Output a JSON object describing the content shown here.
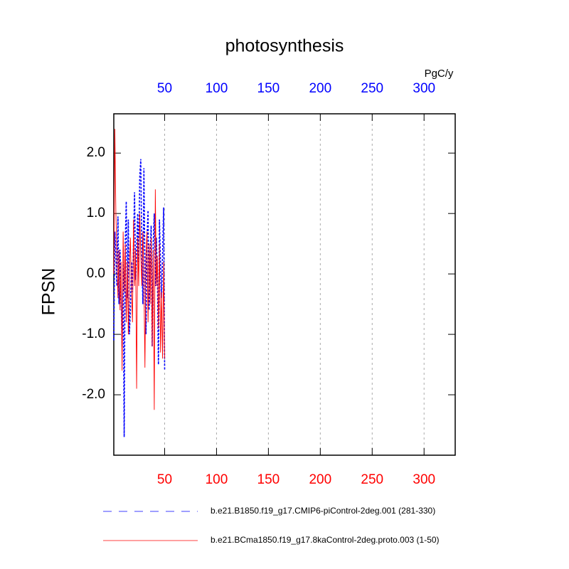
{
  "chart_data": {
    "type": "line",
    "title": "photosynthesis",
    "y_label": "FPSN",
    "x_units_label": "PgC/y",
    "x": [
      1,
      2,
      3,
      4,
      5,
      6,
      7,
      8,
      9,
      10,
      11,
      12,
      13,
      14,
      15,
      16,
      17,
      18,
      19,
      20,
      21,
      22,
      23,
      24,
      25,
      26,
      27,
      28,
      29,
      30,
      31,
      32,
      33,
      34,
      35,
      36,
      37,
      38,
      39,
      40,
      41,
      42,
      43,
      44,
      45,
      46,
      47,
      48,
      49,
      50
    ],
    "series": [
      {
        "name": "b.e21.B1850.f19_g17.CMIP6-piControl-2deg.001 (281-330)",
        "color": "#0000ff",
        "line_style": "dashed",
        "values": [
          -1.1,
          0.7,
          0.3,
          -0.2,
          0.95,
          -0.5,
          0.4,
          -0.3,
          -1.2,
          0.2,
          -2.7,
          0.5,
          1.2,
          -0.4,
          0.9,
          -1.0,
          -0.6,
          0.2,
          -0.3,
          0.5,
          1.35,
          -0.1,
          0.4,
          1.0,
          0.2,
          1.6,
          1.9,
          0.3,
          -0.5,
          1.75,
          0.1,
          -1.0,
          0.6,
          1.05,
          -0.6,
          0.3,
          0.8,
          -1.2,
          0.5,
          1.0,
          -0.2,
          0.6,
          0.0,
          -1.5,
          0.9,
          0.2,
          -0.4,
          0.3,
          1.1,
          -1.6
        ]
      },
      {
        "name": "b.e21.BCma1850.f19_g17.8kaControl-2deg.proto.003 (1-50)",
        "color": "#ff0000",
        "line_style": "solid",
        "values": [
          0.0,
          2.4,
          1.0,
          0.3,
          -0.4,
          0.4,
          -0.6,
          0.2,
          -1.6,
          0.7,
          -0.3,
          0.5,
          -0.8,
          0.2,
          -1.0,
          0.1,
          0.6,
          -0.3,
          -0.8,
          0.9,
          -0.2,
          0.4,
          -1.9,
          0.6,
          -0.2,
          1.0,
          0.3,
          -0.2,
          0.7,
          -0.1,
          -1.55,
          0.3,
          0.7,
          -0.8,
          0.5,
          -0.5,
          0.6,
          -1.2,
          0.4,
          -2.25,
          1.4,
          -0.2,
          0.3,
          -0.9,
          0.5,
          -1.3,
          -0.3,
          -1.4,
          0.2,
          -1.4
        ]
      }
    ],
    "xlim": [
      1,
      330
    ],
    "xticks": [
      50,
      100,
      150,
      200,
      250,
      300
    ],
    "ylim": [
      -3.0,
      2.65
    ],
    "yticks": [
      {
        "value": -2,
        "label": "-2.0"
      },
      {
        "value": -1,
        "label": "-1.0"
      },
      {
        "value": 0,
        "label": "0.0"
      },
      {
        "value": 1,
        "label": "1.0"
      },
      {
        "value": 2,
        "label": "2.0"
      }
    ],
    "top_axis_color": "#0000ff",
    "bottom_axis_color": "#ff0000",
    "xgrid": true
  }
}
